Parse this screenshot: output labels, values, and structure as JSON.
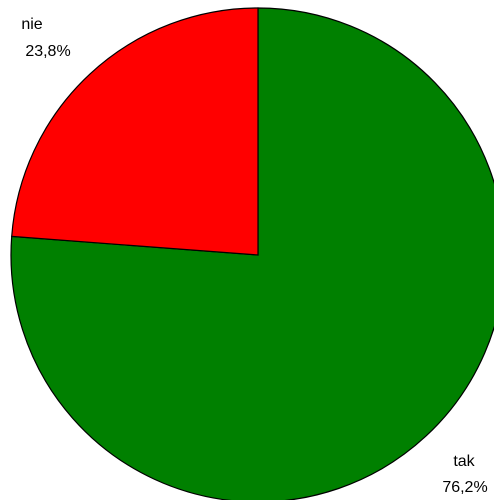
{
  "chart_data": {
    "type": "pie",
    "slices": [
      {
        "label": "tak",
        "value": 76.2,
        "value_label": "76,2%",
        "color": "#008000"
      },
      {
        "label": "nie",
        "value": 23.8,
        "value_label": "23,8%",
        "color": "#ff0000"
      }
    ],
    "start_angle_deg": 0,
    "direction": "clockwise"
  }
}
